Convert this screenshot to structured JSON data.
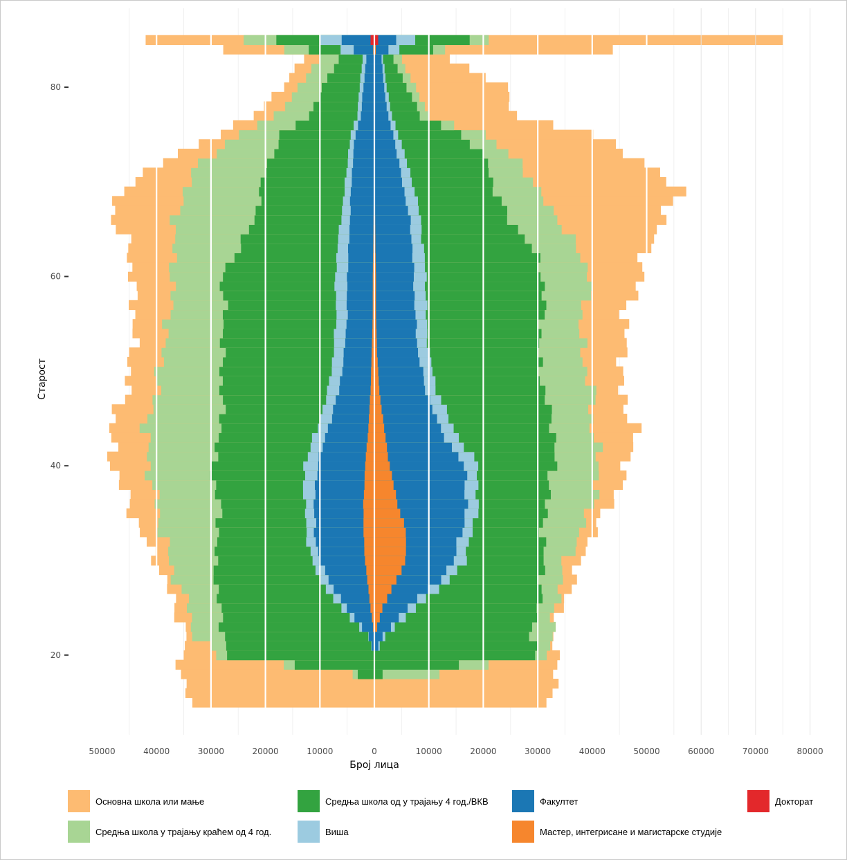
{
  "chart_data": {
    "type": "bar",
    "subtype": "population-pyramid-stacked",
    "title": "",
    "xlabel": "Број лица",
    "ylabel": "Старост",
    "xlim": [
      -50000,
      80000
    ],
    "x_ticks": [
      -50000,
      -40000,
      -30000,
      -20000,
      -10000,
      0,
      10000,
      20000,
      30000,
      40000,
      50000,
      60000,
      70000,
      80000
    ],
    "x_tick_labels": [
      "50000",
      "40000",
      "30000",
      "20000",
      "10000",
      "0",
      "10000",
      "20000",
      "30000",
      "40000",
      "50000",
      "60000",
      "70000",
      "80000"
    ],
    "ylim": [
      15,
      85
    ],
    "y_ticks": [
      20,
      40,
      60,
      80
    ],
    "y_tick_labels": [
      "20",
      "40",
      "60",
      "80"
    ],
    "grid": true,
    "legend_position": "bottom",
    "left_side": "",
    "right_side": "",
    "categories": [
      "Основна школа или мање",
      "Средња школа у трајању краћем од 4 год.",
      "Средња школа од у трајању 4 год./ВКВ",
      "Виша",
      "Факултет",
      "Мастер, интегрисане и магистарске студије",
      "Доктарат"
    ],
    "series": [
      {
        "name": "Основна школа или мање",
        "color": "#fdbb72"
      },
      {
        "name": "Средња школа у трајању краћем од 4 год.",
        "color": "#a8d594"
      },
      {
        "name": "Средња школа од у трајању 4 год./ВКВ",
        "color": "#33a340"
      },
      {
        "name": "Виша",
        "color": "#9ccbe0"
      },
      {
        "name": "Факултет",
        "color": "#1b77b4"
      },
      {
        "name": "Мастер, интегрисане и магистарске студије",
        "color": "#f6862d"
      },
      {
        "name": "Докторат",
        "color": "#e3282b"
      }
    ],
    "left_cumulative_anchors": {
      "ages": [
        15,
        17,
        18,
        20,
        22,
        25,
        28,
        30,
        33,
        36,
        40,
        44,
        48,
        52,
        56,
        60,
        63,
        66,
        69,
        72,
        75,
        77,
        80,
        83,
        85
      ],
      "c1": [
        0,
        0,
        0,
        0,
        0,
        700,
        1300,
        1700,
        2000,
        2000,
        1700,
        1100,
        700,
        500,
        300,
        300,
        200,
        150,
        100,
        60,
        40,
        30,
        30,
        30,
        400
      ],
      "c2": [
        0,
        0,
        0,
        0,
        1000,
        5000,
        8500,
        10000,
        11000,
        11000,
        10500,
        8500,
        6500,
        5500,
        5000,
        5000,
        4700,
        4500,
        4300,
        4000,
        3500,
        2500,
        2000,
        1500,
        6000
      ],
      "c3": [
        0,
        0,
        0,
        0,
        1100,
        6200,
        10000,
        11500,
        12500,
        12800,
        13000,
        10500,
        8500,
        7500,
        7000,
        7200,
        6800,
        6200,
        5500,
        5000,
        4300,
        3200,
        2700,
        2200,
        10000
      ],
      "c4": [
        0,
        0,
        3000,
        27000,
        27500,
        28500,
        29000,
        29500,
        28500,
        28500,
        30000,
        28000,
        28000,
        28000,
        27500,
        28000,
        25000,
        22000,
        21000,
        19500,
        17000,
        12000,
        9500,
        6500,
        18000
      ],
      "c5": [
        0,
        0,
        4000,
        29000,
        33000,
        34000,
        36500,
        37500,
        39000,
        40000,
        41500,
        42000,
        40000,
        39000,
        37500,
        37000,
        37000,
        36500,
        35000,
        32000,
        25000,
        18000,
        14000,
        10000,
        24000
      ],
      "total": [
        34000,
        35000,
        35500,
        35500,
        34500,
        36500,
        38500,
        40000,
        43000,
        45000,
        48000,
        48500,
        45500,
        44500,
        44000,
        44500,
        45000,
        48000,
        47000,
        39000,
        29000,
        22000,
        17000,
        13000,
        42000
      ]
    },
    "right_cumulative_anchors": {
      "ages": [
        15,
        17,
        18,
        20,
        22,
        25,
        28,
        30,
        33,
        36,
        40,
        44,
        48,
        52,
        56,
        60,
        63,
        66,
        69,
        72,
        75,
        77,
        80,
        83,
        85
      ],
      "c1": [
        0,
        0,
        0,
        0,
        0,
        1500,
        4000,
        5800,
        5800,
        4300,
        2800,
        1800,
        900,
        500,
        300,
        300,
        200,
        150,
        100,
        60,
        40,
        30,
        30,
        30,
        500
      ],
      "c2": [
        0,
        0,
        0,
        0,
        1500,
        6000,
        12000,
        14500,
        16000,
        17000,
        16500,
        12000,
        9500,
        8000,
        7500,
        7200,
        7000,
        6500,
        5500,
        4500,
        3500,
        2500,
        1800,
        1300,
        4000
      ],
      "c3": [
        0,
        0,
        0,
        0,
        2000,
        7500,
        14000,
        16500,
        18000,
        19000,
        19000,
        14500,
        11500,
        10000,
        9500,
        9500,
        9000,
        8500,
        7500,
        6000,
        4500,
        3200,
        2300,
        1600,
        7500
      ],
      "c4": [
        0,
        0,
        1500,
        29500,
        29000,
        30000,
        31000,
        31000,
        31000,
        31500,
        33000,
        33000,
        31000,
        30000,
        31000,
        31000,
        29000,
        25000,
        22000,
        21000,
        16000,
        8500,
        6000,
        3500,
        17500
      ],
      "c5": [
        0,
        0,
        12000,
        31000,
        33000,
        33000,
        34500,
        35000,
        38000,
        40000,
        41500,
        40000,
        40000,
        38000,
        38000,
        40000,
        37000,
        34000,
        30000,
        27000,
        20000,
        10000,
        7500,
        5000,
        21000
      ],
      "total": [
        32000,
        33000,
        33500,
        34000,
        32000,
        34500,
        36500,
        38000,
        40000,
        43500,
        46500,
        48000,
        45000,
        46000,
        46000,
        49000,
        50000,
        53000,
        56000,
        50000,
        40000,
        26000,
        24000,
        14000,
        75000
      ]
    }
  },
  "legend": {
    "items": [
      {
        "label": "Основна школа или мање",
        "color": "#fdbb72"
      },
      {
        "label": "Средња школа у трајању краћем од 4 год.",
        "color": "#a8d594"
      },
      {
        "label": "Средња школа од у трајању 4 год./ВКВ",
        "color": "#33a340"
      },
      {
        "label": "Виша",
        "color": "#9ccbe0"
      },
      {
        "label": "Факултет",
        "color": "#1b77b4"
      },
      {
        "label": "Мастер, интегрисане и магистарске студије",
        "color": "#f6862d"
      },
      {
        "label": "Докторат",
        "color": "#e3282b"
      }
    ]
  }
}
